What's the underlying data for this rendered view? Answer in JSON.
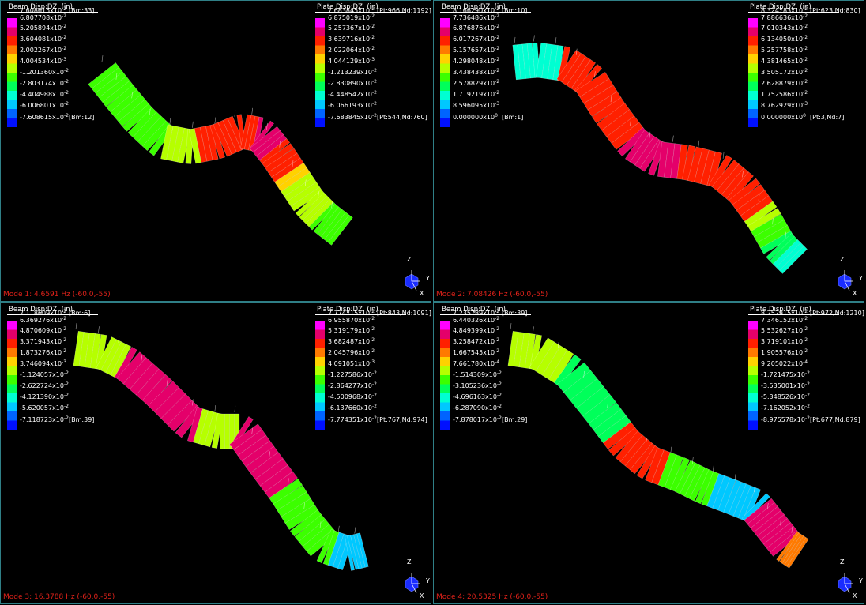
{
  "colors": {
    "background": "#000000",
    "pane_border": "#2f7f86",
    "mode_label": "#e0221a",
    "colorbar": [
      "#ff00ff",
      "#e4006a",
      "#ff2000",
      "#ff7a00",
      "#ffd200",
      "#b6ff00",
      "#3cff00",
      "#00ff5a",
      "#00ffd2",
      "#00c8ff",
      "#0064ff",
      "#0010ff"
    ]
  },
  "panes": [
    {
      "mode_label": "Mode 1: 4.6591 Hz (-60.0,-55)",
      "beam": {
        "title": "Beam Disp:DZ  (in)",
        "max_ref": "[Bm:33]",
        "min_ref": "[Bm:12]",
        "labels": [
          "7.608615x10^-2",
          "6.807708x10^-2",
          "5.205894x10^-2",
          "3.604081x10^-2",
          "2.002267x10^-2",
          "4.004534x10^-3",
          "-1.201360x10^-2",
          "-2.803174x10^-2",
          "-4.404988x10^-2",
          "-6.006801x10^-2",
          "-7.608615x10^-2"
        ]
      },
      "plate": {
        "title": "Plate Disp:DZ  (in)",
        "max_ref": "[Pt:966,Nd:1192]",
        "min_ref": "[Pt:544,Nd:760]",
        "labels": [
          "7.683845x10^-2",
          "6.875019x10^-2",
          "5.257367x10^-2",
          "3.639716x10^-2",
          "2.022064x10^-2",
          "4.044129x10^-3",
          "-1.213239x10^-2",
          "-2.830890x10^-2",
          "-4.448542x10^-2",
          "-6.066193x10^-2",
          "-7.683845x10^-2"
        ]
      },
      "axes": {
        "z": "Z",
        "y": "Y",
        "x": "X"
      }
    },
    {
      "mode_label": "Mode 2: 7.08426 Hz (-60.0,-55)",
      "beam": {
        "title": "Beam Disp:DZ  (in)",
        "max_ref": "[Bm:10]",
        "min_ref": "[Bm:1]",
        "labels": [
          "8.166290x10^-2",
          "7.736486x10^-2",
          "6.876876x10^-2",
          "6.017267x10^-2",
          "5.157657x10^-2",
          "4.298048x10^-2",
          "3.438438x10^-2",
          "2.578829x10^-2",
          "1.719219x10^-2",
          "8.596095x10^-3",
          "0.000000x10^0"
        ]
      },
      "plate": {
        "title": "Plate Disp:DZ  (in)",
        "max_ref": "[Pt:623,Nd:830]",
        "min_ref": "[Pt:3,Nd:7]",
        "labels": [
          "8.324783x10^-2",
          "7.886636x10^-2",
          "7.010343x10^-2",
          "6.134050x10^-2",
          "5.257758x10^-2",
          "4.381465x10^-2",
          "3.505172x10^-2",
          "2.628879x10^-2",
          "1.752586x10^-2",
          "8.762929x10^-3",
          "0.000000x10^0"
        ]
      },
      "axes": {
        "z": "Z",
        "y": "Y",
        "x": "X"
      }
    },
    {
      "mode_label": "Mode 3: 16.3788 Hz (-60.0,-55)",
      "beam": {
        "title": "Beam Disp:DZ  (in)",
        "max_ref": "[Bm:6]",
        "min_ref": "[Bm:39]",
        "labels": [
          "7.118609x10^-2",
          "6.369276x10^-2",
          "4.870609x10^-2",
          "3.371943x10^-2",
          "1.873276x10^-2",
          "3.746094x10^-3",
          "-1.124057x10^-2",
          "-2.622724x10^-2",
          "-4.121390x10^-2",
          "-5.620057x10^-2",
          "-7.118723x10^-2"
        ]
      },
      "plate": {
        "title": "Plate Disp:DZ  (in)",
        "max_ref": "[Pt:843,Nd:1091]",
        "min_ref": "[Pt:767,Nd:974]",
        "labels": [
          "7.774215x10^-2",
          "6.955870x10^-2",
          "5.319179x10^-2",
          "3.682487x10^-2",
          "2.045796x10^-2",
          "4.091051x10^-3",
          "-1.227586x10^-2",
          "-2.864277x10^-2",
          "-4.500968x10^-2",
          "-6.137660x10^-2",
          "-7.774351x10^-2"
        ]
      },
      "axes": {
        "z": "Z",
        "y": "Y",
        "x": "X"
      }
    },
    {
      "mode_label": "Mode 4: 20.5325 Hz (-60.0,-55)",
      "beam": {
        "title": "Beam Disp:DZ  (in)",
        "max_ref": "[Bm:39]",
        "min_ref": "[Bm:29]",
        "labels": [
          "7.235789x10^-2",
          "6.440326x10^-2",
          "4.849399x10^-2",
          "3.258472x10^-2",
          "1.667545x10^-2",
          "7.661780x10^-4",
          "-1.514309x10^-2",
          "-3.105236x10^-2",
          "-4.696163x10^-2",
          "-6.287090x10^-2",
          "-7.878017x10^-2"
        ]
      },
      "plate": {
        "title": "Plate Disp:DZ  (in)",
        "max_ref": "[Pt:972,Nd:1210]",
        "min_ref": "[Pt:677,Nd:879]",
        "labels": [
          "8.252915x10^-2",
          "7.346152x10^-2",
          "5.532627x10^-2",
          "3.719101x10^-2",
          "1.905576x10^-2",
          "9.205022x10^-4",
          "-1.721475x10^-2",
          "-3.535001x10^-2",
          "-5.348526x10^-2",
          "-7.162052x10^-2",
          "-8.975578x10^-2"
        ]
      },
      "axes": {
        "z": "Z",
        "y": "Y",
        "x": "X"
      }
    }
  ]
}
